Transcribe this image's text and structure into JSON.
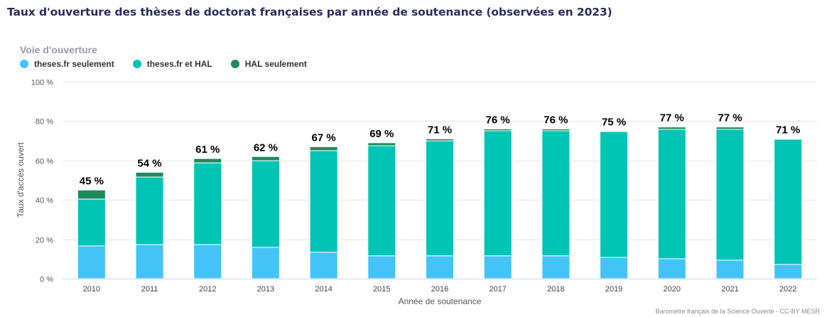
{
  "title": "Taux d'ouverture des thèses de doctorat françaises par année de soutenance (observées en 2023)",
  "legend": {
    "title": "Voie d'ouverture",
    "items": [
      {
        "label": "theses.fr seulement",
        "color": "#43c3f8"
      },
      {
        "label": "theses.fr et HAL",
        "color": "#00c4b4"
      },
      {
        "label": "HAL seulement",
        "color": "#218a5c"
      }
    ]
  },
  "credit": "Baromètre français de la Science Ouverte - CC-BY MESR",
  "chart_data": {
    "type": "bar",
    "stacked": true,
    "title": "Taux d'ouverture des thèses de doctorat françaises par année de soutenance (observées en 2023)",
    "xlabel": "Année de soutenance",
    "ylabel": "Taux d'accès ouvert",
    "ylim": [
      0,
      100
    ],
    "yticks": [
      "0 %",
      "20 %",
      "40 %",
      "60 %",
      "80 %",
      "100 %"
    ],
    "ytick_values": [
      0,
      20,
      40,
      60,
      80,
      100
    ],
    "grid": true,
    "legend_position": "top-left",
    "categories": [
      "2010",
      "2011",
      "2012",
      "2013",
      "2014",
      "2015",
      "2016",
      "2017",
      "2018",
      "2019",
      "2020",
      "2021",
      "2022"
    ],
    "series": [
      {
        "name": "theses.fr seulement",
        "color": "#43c3f8",
        "values": [
          16.6,
          17.3,
          17.3,
          15.9,
          13.4,
          11.6,
          11.6,
          11.6,
          11.6,
          10.8,
          10.1,
          9.4,
          7.2
        ]
      },
      {
        "name": "theses.fr et HAL",
        "color": "#00c4b4",
        "values": [
          23.8,
          34.3,
          41.5,
          44.0,
          51.6,
          55.9,
          58.4,
          63.5,
          63.5,
          63.9,
          65.7,
          66.4,
          63.6
        ]
      },
      {
        "name": "HAL seulement",
        "color": "#218a5c",
        "values": [
          4.6,
          2.4,
          2.2,
          2.1,
          2.0,
          1.5,
          1.0,
          0.9,
          0.9,
          0.3,
          1.2,
          1.2,
          0.2
        ]
      }
    ],
    "totals": [
      45,
      54,
      61,
      62,
      67,
      69,
      71,
      76,
      76,
      75,
      77,
      77,
      71
    ],
    "total_labels": [
      "45 %",
      "54 %",
      "61 %",
      "62 %",
      "67 %",
      "69 %",
      "71 %",
      "76 %",
      "76 %",
      "75 %",
      "77 %",
      "77 %",
      "71 %"
    ]
  }
}
